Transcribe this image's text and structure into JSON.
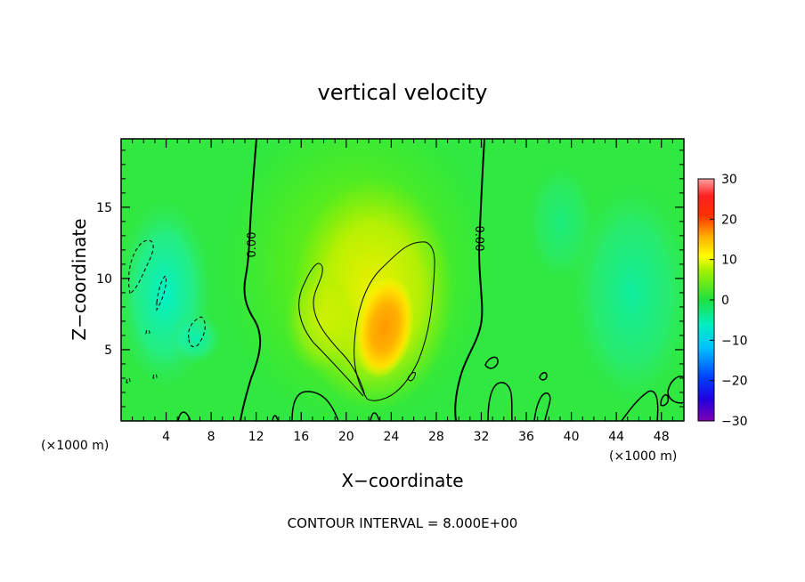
{
  "chart_data": {
    "type": "heatmap",
    "title": "vertical velocity",
    "xlabel": "X−coordinate",
    "ylabel": "Z−coordinate",
    "x_unit": "(×1000 m)",
    "y_unit": "(×1000 m)",
    "xlim": [
      0,
      50
    ],
    "ylim": [
      0,
      19.8
    ],
    "x_ticks": [
      4,
      8,
      12,
      16,
      20,
      24,
      28,
      32,
      36,
      40,
      44,
      48
    ],
    "y_ticks": [
      5,
      10,
      15
    ],
    "colorbar": {
      "min": -30,
      "max": 30,
      "ticks": [
        "30",
        "20",
        "10",
        "0",
        "−10",
        "−20",
        "−30"
      ],
      "colors": [
        "#8000b0",
        "#0000e0",
        "#00a0ff",
        "#00f0d0",
        "#20e060",
        "#40f000",
        "#c0f000",
        "#ffff00",
        "#ffb000",
        "#ff4000",
        "#ff0000",
        "#ffa0a0"
      ]
    },
    "contour_labels": [
      "0.00",
      "0.00"
    ],
    "footer": "CONTOUR INTERVAL = 8.000E+00"
  }
}
